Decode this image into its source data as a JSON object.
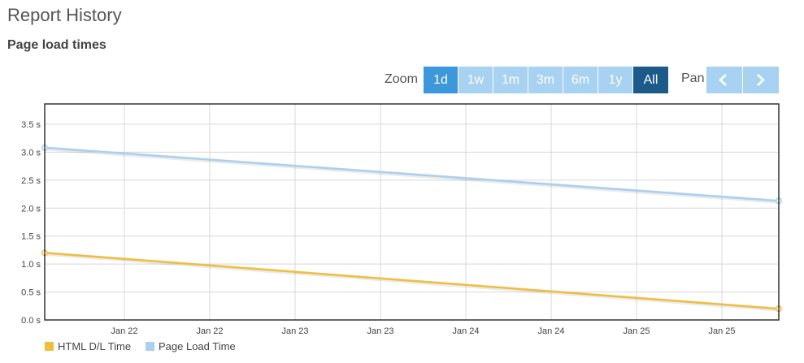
{
  "page": {
    "title": "Report History",
    "subtitle": "Page load times"
  },
  "zoom": {
    "label": "Zoom",
    "buttons": [
      "1d",
      "1w",
      "1m",
      "3m",
      "6m",
      "1y",
      "All"
    ],
    "selected": "All",
    "pan_label": "Pan"
  },
  "colors": {
    "html_series": "#f0be3c",
    "page_series": "#a9d0ef",
    "button": "#a8d2f2",
    "button_1d": "#3d97db",
    "button_active": "#1c5a8a"
  },
  "chart_data": {
    "type": "line",
    "x_ticks": [
      "Jan 22",
      "Jan 22",
      "Jan 23",
      "Jan 23",
      "Jan 24",
      "Jan 24",
      "Jan 25",
      "Jan 25"
    ],
    "y_ticks": [
      "0.0 s",
      "0.5 s",
      "1.0 s",
      "1.5 s",
      "2.0 s",
      "2.5 s",
      "3.0 s",
      "3.5 s"
    ],
    "ylim": [
      0,
      3.5
    ],
    "grid": true,
    "legend_position": "bottom-left",
    "series": [
      {
        "name": "HTML D/L Time",
        "color": "#f0be3c",
        "values": [
          1.2,
          0.2
        ]
      },
      {
        "name": "Page Load Time",
        "color": "#a9d0ef",
        "values": [
          3.08,
          2.13
        ]
      }
    ]
  }
}
